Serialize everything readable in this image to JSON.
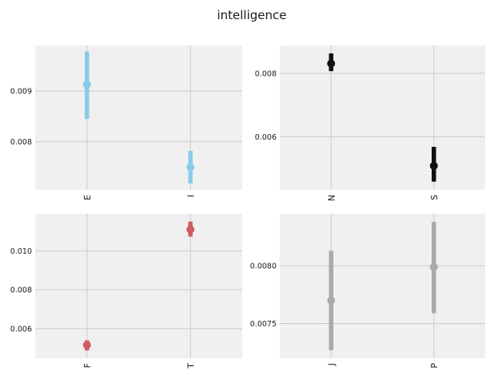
{
  "suptitle": "intelligence",
  "chart_data": [
    {
      "type": "scatter",
      "subtype": "point-with-error-bar",
      "categories": [
        "E",
        "I"
      ],
      "values": [
        0.00913,
        0.0075
      ],
      "err_low": [
        0.00845,
        0.00718
      ],
      "err_high": [
        0.00978,
        0.00782
      ],
      "ylim": [
        0.00705,
        0.0099
      ],
      "yticks": [
        0.008,
        0.009
      ],
      "ytick_labels": [
        "0.008",
        "0.009"
      ],
      "color": "#89cbe8",
      "grid": true,
      "background": "#f0f0f0"
    },
    {
      "type": "scatter",
      "subtype": "point-with-error-bar",
      "categories": [
        "N",
        "S"
      ],
      "values": [
        0.00831,
        0.00508
      ],
      "err_low": [
        0.00807,
        0.00458
      ],
      "err_high": [
        0.00863,
        0.00568
      ],
      "ylim": [
        0.00432,
        0.00888
      ],
      "yticks": [
        0.006,
        0.008
      ],
      "ytick_labels": [
        "0.006",
        "0.008"
      ],
      "color": "#111111",
      "grid": true,
      "background": "#f0f0f0"
    },
    {
      "type": "scatter",
      "subtype": "point-with-error-bar",
      "categories": [
        "F",
        "T"
      ],
      "values": [
        0.00516,
        0.0111
      ],
      "err_low": [
        0.00488,
        0.01073
      ],
      "err_high": [
        0.0054,
        0.0115
      ],
      "ylim": [
        0.00448,
        0.0119
      ],
      "yticks": [
        0.006,
        0.008,
        0.01
      ],
      "ytick_labels": [
        "0.006",
        "0.008",
        "0.010"
      ],
      "color": "#cd5d62",
      "grid": true,
      "background": "#f0f0f0"
    },
    {
      "type": "scatter",
      "subtype": "point-with-error-bar",
      "categories": [
        "J",
        "P"
      ],
      "values": [
        0.0077,
        0.00799
      ],
      "err_low": [
        0.00727,
        0.00759
      ],
      "err_high": [
        0.00813,
        0.00838
      ],
      "ylim": [
        0.0072,
        0.00845
      ],
      "yticks": [
        0.0075,
        0.008
      ],
      "ytick_labels": [
        "0.0075",
        "0.0080"
      ],
      "color": "#aaaaaa",
      "grid": true,
      "background": "#f0f0f0"
    }
  ]
}
